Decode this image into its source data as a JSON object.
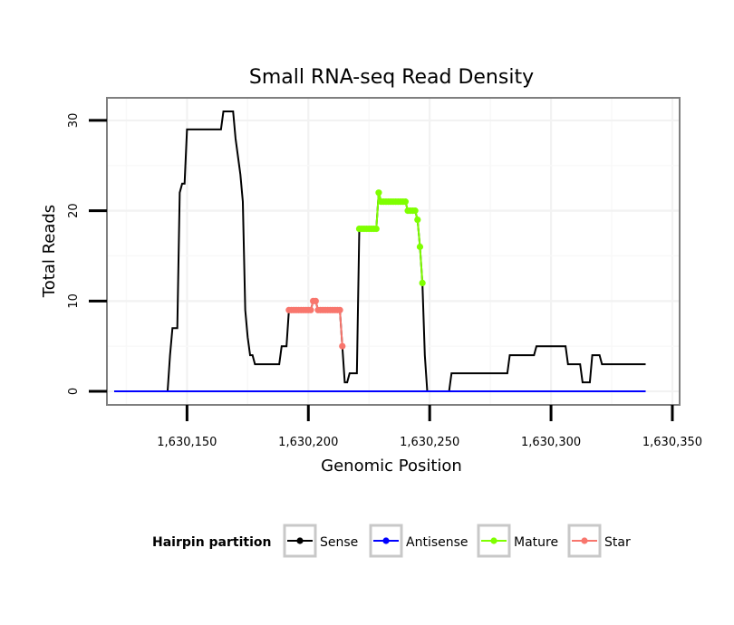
{
  "chart_data": {
    "type": "line",
    "title": "Small RNA-seq Read Density",
    "xlabel": "Genomic Position",
    "ylabel": "Total Reads",
    "xlim": [
      1630117,
      1630353
    ],
    "ylim": [
      -1.5,
      32.5
    ],
    "x_ticks": [
      1630150,
      1630200,
      1630250,
      1630300,
      1630350
    ],
    "x_tick_labels": [
      "1,630,150",
      "1,630,200",
      "1,630,250",
      "1,630,300",
      "1,630,350"
    ],
    "y_ticks": [
      0,
      10,
      20,
      30
    ],
    "y_tick_labels": [
      "0",
      "10",
      "20",
      "30"
    ],
    "grid": true,
    "legend": {
      "title": "Hairpin partition",
      "placement": "bottom",
      "entries": [
        {
          "label": "Sense",
          "color": "#000000"
        },
        {
          "label": "Antisense",
          "color": "#0000ff"
        },
        {
          "label": "Mature",
          "color": "#7fff00"
        },
        {
          "label": "Star",
          "color": "#f8766d"
        }
      ]
    },
    "series": [
      {
        "name": "Sense",
        "color": "#000000",
        "points": [
          [
            1630120,
            0
          ],
          [
            1630142,
            0
          ],
          [
            1630143,
            4
          ],
          [
            1630144,
            7
          ],
          [
            1630146,
            7
          ],
          [
            1630147,
            22
          ],
          [
            1630148,
            23
          ],
          [
            1630149,
            23
          ],
          [
            1630150,
            29
          ],
          [
            1630164,
            29
          ],
          [
            1630165,
            31
          ],
          [
            1630169,
            31
          ],
          [
            1630170,
            28
          ],
          [
            1630171,
            26
          ],
          [
            1630172,
            24
          ],
          [
            1630173,
            21
          ],
          [
            1630174,
            9
          ],
          [
            1630175,
            6
          ],
          [
            1630176,
            4
          ],
          [
            1630177,
            4
          ],
          [
            1630178,
            3
          ],
          [
            1630188,
            3
          ],
          [
            1630189,
            5
          ],
          [
            1630191,
            5
          ],
          [
            1630192,
            9
          ],
          [
            1630201,
            9
          ],
          [
            1630202,
            10
          ],
          [
            1630203,
            10
          ],
          [
            1630204,
            9
          ],
          [
            1630213,
            9
          ],
          [
            1630214,
            5
          ],
          [
            1630215,
            1
          ],
          [
            1630216,
            1
          ],
          [
            1630217,
            2
          ],
          [
            1630220,
            2
          ],
          [
            1630221,
            18
          ],
          [
            1630228,
            18
          ],
          [
            1630229,
            22
          ],
          [
            1630230,
            21
          ],
          [
            1630240,
            21
          ],
          [
            1630241,
            20
          ],
          [
            1630244,
            20
          ],
          [
            1630245,
            19
          ],
          [
            1630246,
            16
          ],
          [
            1630247,
            12
          ],
          [
            1630248,
            4
          ],
          [
            1630249,
            0
          ],
          [
            1630258,
            0
          ],
          [
            1630259,
            2
          ],
          [
            1630282,
            2
          ],
          [
            1630283,
            4
          ],
          [
            1630293,
            4
          ],
          [
            1630294,
            5
          ],
          [
            1630306,
            5
          ],
          [
            1630307,
            3
          ],
          [
            1630312,
            3
          ],
          [
            1630313,
            1
          ],
          [
            1630316,
            1
          ],
          [
            1630317,
            4
          ],
          [
            1630320,
            4
          ],
          [
            1630321,
            3
          ],
          [
            1630339,
            3
          ]
        ]
      },
      {
        "name": "Antisense",
        "color": "#0000ff",
        "points": [
          [
            1630120,
            0
          ],
          [
            1630339,
            0
          ]
        ]
      },
      {
        "name": "Mature",
        "color": "#7fff00",
        "points": [
          [
            1630221,
            18
          ],
          [
            1630222,
            18
          ],
          [
            1630223,
            18
          ],
          [
            1630224,
            18
          ],
          [
            1630225,
            18
          ],
          [
            1630226,
            18
          ],
          [
            1630227,
            18
          ],
          [
            1630228,
            18
          ],
          [
            1630229,
            22
          ],
          [
            1630230,
            21
          ],
          [
            1630231,
            21
          ],
          [
            1630232,
            21
          ],
          [
            1630233,
            21
          ],
          [
            1630234,
            21
          ],
          [
            1630235,
            21
          ],
          [
            1630236,
            21
          ],
          [
            1630237,
            21
          ],
          [
            1630238,
            21
          ],
          [
            1630239,
            21
          ],
          [
            1630240,
            21
          ],
          [
            1630241,
            20
          ],
          [
            1630242,
            20
          ],
          [
            1630243,
            20
          ],
          [
            1630244,
            20
          ],
          [
            1630245,
            19
          ],
          [
            1630246,
            16
          ],
          [
            1630247,
            12
          ]
        ]
      },
      {
        "name": "Star",
        "color": "#f8766d",
        "points": [
          [
            1630192,
            9
          ],
          [
            1630193,
            9
          ],
          [
            1630194,
            9
          ],
          [
            1630195,
            9
          ],
          [
            1630196,
            9
          ],
          [
            1630197,
            9
          ],
          [
            1630198,
            9
          ],
          [
            1630199,
            9
          ],
          [
            1630200,
            9
          ],
          [
            1630201,
            9
          ],
          [
            1630202,
            10
          ],
          [
            1630203,
            10
          ],
          [
            1630204,
            9
          ],
          [
            1630205,
            9
          ],
          [
            1630206,
            9
          ],
          [
            1630207,
            9
          ],
          [
            1630208,
            9
          ],
          [
            1630209,
            9
          ],
          [
            1630210,
            9
          ],
          [
            1630211,
            9
          ],
          [
            1630212,
            9
          ],
          [
            1630213,
            9
          ],
          [
            1630214,
            5
          ]
        ]
      }
    ]
  }
}
